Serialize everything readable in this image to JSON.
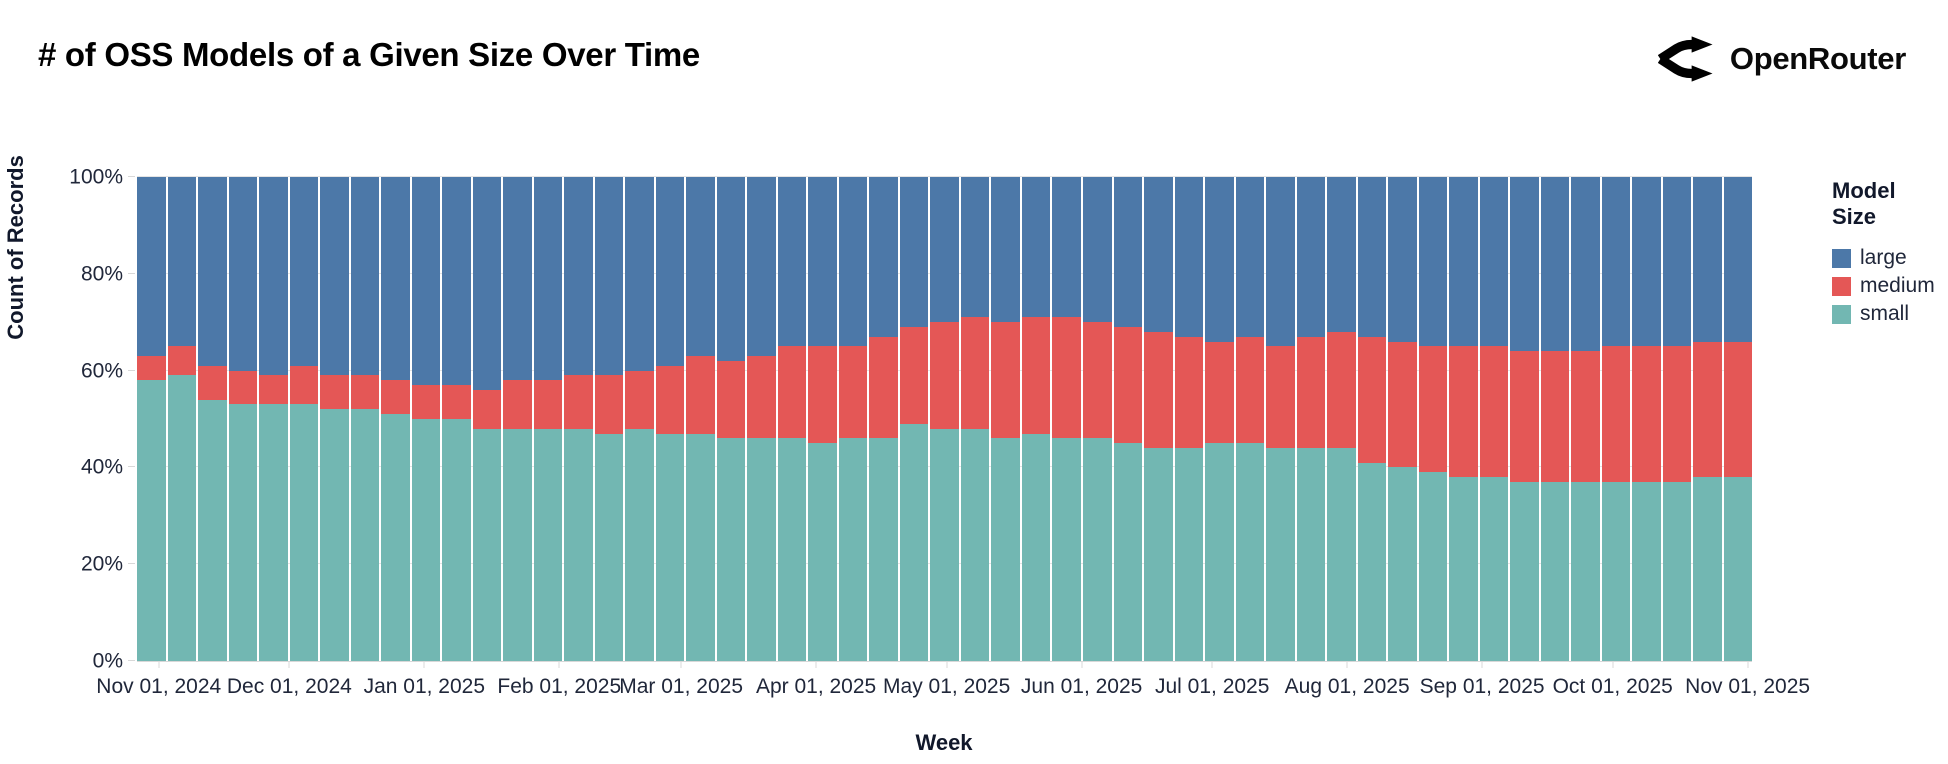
{
  "header": {
    "title": "# of OSS Models of a Given Size Over Time",
    "brand": "OpenRouter"
  },
  "chart_data": {
    "type": "bar",
    "stacked": true,
    "normalized": "100% stacked (percent of weekly total)",
    "title": "# of OSS Models of a Given Size Over Time",
    "xlabel": "Week",
    "ylabel": "Count of Records",
    "ylim": [
      0,
      100
    ],
    "grid": "faint horizontal gridlines at 20% steps",
    "legend_position": "right",
    "legend": {
      "title": "Model Size",
      "entries": [
        {
          "label": "large",
          "color": "#4c78a8"
        },
        {
          "label": "medium",
          "color": "#e45756"
        },
        {
          "label": "small",
          "color": "#72b7b2"
        }
      ]
    },
    "y_ticks": [
      {
        "label": "0%",
        "value": 0
      },
      {
        "label": "20%",
        "value": 20
      },
      {
        "label": "40%",
        "value": 40
      },
      {
        "label": "60%",
        "value": 60
      },
      {
        "label": "80%",
        "value": 80
      },
      {
        "label": "100%",
        "value": 100
      }
    ],
    "x_domain_days": 371,
    "x_ticks": [
      {
        "label": "Nov 01, 2024",
        "day": 5
      },
      {
        "label": "Dec 01, 2024",
        "day": 35
      },
      {
        "label": "Jan 01, 2025",
        "day": 66
      },
      {
        "label": "Feb 01, 2025",
        "day": 97
      },
      {
        "label": "Mar 01, 2025",
        "day": 125
      },
      {
        "label": "Apr 01, 2025",
        "day": 156
      },
      {
        "label": "May 01, 2025",
        "day": 186
      },
      {
        "label": "Jun 01, 2025",
        "day": 217
      },
      {
        "label": "Jul 01, 2025",
        "day": 247
      },
      {
        "label": "Aug 01, 2025",
        "day": 278
      },
      {
        "label": "Sep 01, 2025",
        "day": 309
      },
      {
        "label": "Oct 01, 2025",
        "day": 339
      },
      {
        "label": "Nov 01, 2025",
        "day": 370
      }
    ],
    "weeks": [
      "2024-10-27",
      "2024-11-03",
      "2024-11-10",
      "2024-11-17",
      "2024-11-24",
      "2024-12-01",
      "2024-12-08",
      "2024-12-15",
      "2024-12-22",
      "2024-12-29",
      "2025-01-05",
      "2025-01-12",
      "2025-01-19",
      "2025-01-26",
      "2025-02-02",
      "2025-02-09",
      "2025-02-16",
      "2025-02-23",
      "2025-03-02",
      "2025-03-09",
      "2025-03-16",
      "2025-03-23",
      "2025-03-30",
      "2025-04-06",
      "2025-04-13",
      "2025-04-20",
      "2025-04-27",
      "2025-05-04",
      "2025-05-11",
      "2025-05-18",
      "2025-05-25",
      "2025-06-01",
      "2025-06-08",
      "2025-06-15",
      "2025-06-22",
      "2025-06-29",
      "2025-07-06",
      "2025-07-13",
      "2025-07-20",
      "2025-07-27",
      "2025-08-03",
      "2025-08-10",
      "2025-08-17",
      "2025-08-24",
      "2025-08-31",
      "2025-09-07",
      "2025-09-14",
      "2025-09-21",
      "2025-09-28",
      "2025-10-05",
      "2025-10-12",
      "2025-10-19",
      "2025-10-26"
    ],
    "series": [
      {
        "name": "small",
        "color": "#72b7b2",
        "values": [
          58,
          59,
          54,
          53,
          53,
          53,
          52,
          52,
          51,
          50,
          50,
          48,
          48,
          48,
          48,
          47,
          48,
          47,
          47,
          46,
          46,
          46,
          45,
          46,
          46,
          49,
          48,
          48,
          46,
          47,
          46,
          46,
          45,
          44,
          44,
          45,
          45,
          44,
          44,
          44,
          41,
          40,
          39,
          38,
          38,
          37,
          37,
          37,
          37,
          37,
          37,
          38,
          38
        ]
      },
      {
        "name": "medium",
        "color": "#e45756",
        "values": [
          5,
          6,
          7,
          7,
          6,
          8,
          7,
          7,
          7,
          7,
          7,
          8,
          10,
          10,
          11,
          12,
          12,
          14,
          16,
          16,
          17,
          19,
          20,
          19,
          21,
          20,
          22,
          23,
          24,
          24,
          25,
          24,
          24,
          24,
          23,
          21,
          22,
          21,
          23,
          24,
          26,
          26,
          26,
          27,
          27,
          27,
          27,
          27,
          28,
          28,
          28,
          28,
          28
        ]
      },
      {
        "name": "large",
        "color": "#4c78a8",
        "values": [
          37,
          35,
          39,
          40,
          41,
          39,
          41,
          41,
          42,
          43,
          43,
          44,
          42,
          42,
          41,
          41,
          40,
          39,
          37,
          38,
          37,
          35,
          35,
          35,
          33,
          31,
          30,
          29,
          30,
          29,
          29,
          30,
          31,
          32,
          33,
          34,
          33,
          35,
          33,
          32,
          33,
          34,
          35,
          35,
          35,
          36,
          36,
          36,
          35,
          35,
          35,
          34,
          34
        ]
      }
    ]
  }
}
